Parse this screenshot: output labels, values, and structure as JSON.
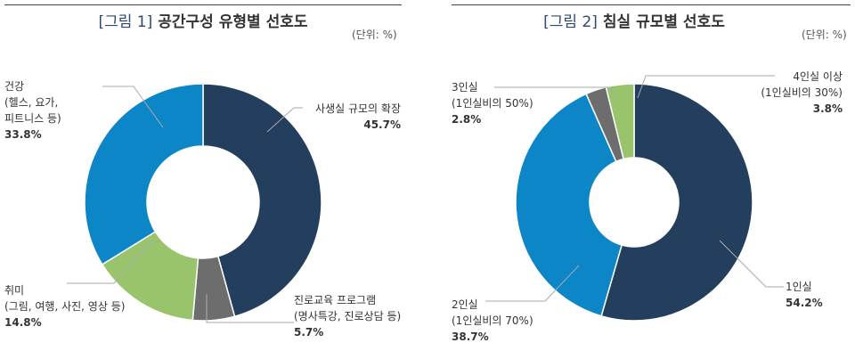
{
  "colors": {
    "dark": "#243f5e",
    "blue": "#0d86c8",
    "gray": "#6d6d6d",
    "green": "#99c46c"
  },
  "chart_data": [
    {
      "type": "pie",
      "donut": true,
      "fig": "[그림 1]",
      "title": "공간구성 유형별 선호도",
      "unit": "(단위: %)",
      "slices": [
        {
          "label": "사생실 규모의 확장",
          "sub": "",
          "value": 45.7,
          "value_text": "45.7%",
          "color": "#243f5e"
        },
        {
          "label": "진로교육 프로그램",
          "sub": "(명사특강, 진로상담 등)",
          "value": 5.7,
          "value_text": "5.7%",
          "color": "#6d6d6d"
        },
        {
          "label": "취미",
          "sub": "(그림, 여행, 사진, 영상 등)",
          "value": 14.8,
          "value_text": "14.8%",
          "color": "#99c46c"
        },
        {
          "label": "건강",
          "sub": "(헬스, 요가,",
          "sub2": "피트니스 등)",
          "value": 33.8,
          "value_text": "33.8%",
          "color": "#0d86c8"
        }
      ]
    },
    {
      "type": "pie",
      "donut": true,
      "fig": "[그림 2]",
      "title": "침실 규모별 선호도",
      "unit": "(단위: %)",
      "slices": [
        {
          "label": "1인실",
          "sub": "",
          "value": 54.2,
          "value_text": "54.2%",
          "color": "#243f5e"
        },
        {
          "label": "2인실",
          "sub": "(1인실비의 70%)",
          "value": 38.7,
          "value_text": "38.7%",
          "color": "#0d86c8"
        },
        {
          "label": "3인실",
          "sub": "(1인실비의 50%)",
          "value": 2.8,
          "value_text": "2.8%",
          "color": "#6d6d6d"
        },
        {
          "label": "4인실 이상",
          "sub": "(1인실비의 30%)",
          "value": 3.8,
          "value_text": "3.8%",
          "color": "#99c46c"
        }
      ]
    }
  ]
}
